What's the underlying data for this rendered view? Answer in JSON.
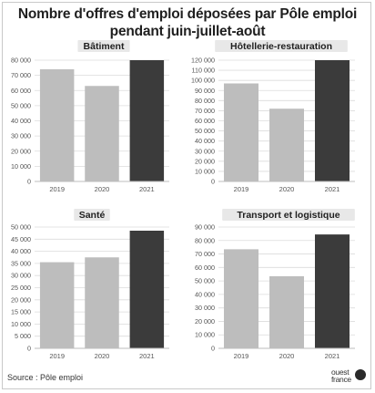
{
  "title": "Nombre d'offres d'emploi déposées par Pôle emploi pendant juin-juillet-août",
  "source": "Source : Pôle emploi",
  "logo": "ouest france",
  "colors": {
    "past": "#bdbdbd",
    "current": "#3b3b3b"
  },
  "chart_data": [
    {
      "type": "bar",
      "title": "Bâtiment",
      "categories": [
        "2019",
        "2020",
        "2021"
      ],
      "values": [
        74000,
        63000,
        80000
      ],
      "ylim": [
        0,
        80000
      ],
      "yticks": [
        0,
        10000,
        20000,
        30000,
        40000,
        50000,
        60000,
        70000,
        80000
      ],
      "ytick_labels": [
        "0",
        "10 000",
        "20 000",
        "30 000",
        "40 000",
        "50 000",
        "60 000",
        "70 000",
        "80 000"
      ],
      "grid": true
    },
    {
      "type": "bar",
      "title": "Hôtellerie-restauration",
      "categories": [
        "2019",
        "2020",
        "2021"
      ],
      "values": [
        97000,
        72000,
        120000
      ],
      "ylim": [
        0,
        120000
      ],
      "yticks": [
        0,
        10000,
        20000,
        30000,
        40000,
        50000,
        60000,
        70000,
        80000,
        90000,
        100000,
        110000,
        120000
      ],
      "ytick_labels": [
        "0",
        "10 000",
        "20 000",
        "30 000",
        "40 000",
        "50 000",
        "60 000",
        "70 000",
        "80 000",
        "90 000",
        "100 000",
        "110 000",
        "120 000"
      ],
      "grid": true
    },
    {
      "type": "bar",
      "title": "Santé",
      "categories": [
        "2019",
        "2020",
        "2021"
      ],
      "values": [
        35500,
        37500,
        48500
      ],
      "ylim": [
        0,
        50000
      ],
      "yticks": [
        0,
        5000,
        10000,
        15000,
        20000,
        25000,
        30000,
        35000,
        40000,
        45000,
        50000
      ],
      "ytick_labels": [
        "0",
        "5 000",
        "10 000",
        "15 000",
        "20 000",
        "25 000",
        "30 000",
        "35 000",
        "40 000",
        "45 000",
        "50 000"
      ],
      "grid": true
    },
    {
      "type": "bar",
      "title": "Transport et logistique",
      "categories": [
        "2019",
        "2020",
        "2021"
      ],
      "values": [
        73500,
        53500,
        84500
      ],
      "ylim": [
        0,
        90000
      ],
      "yticks": [
        0,
        10000,
        20000,
        30000,
        40000,
        50000,
        60000,
        70000,
        80000,
        90000
      ],
      "ytick_labels": [
        "0",
        "10 000",
        "20 000",
        "30 000",
        "40 000",
        "50 000",
        "60 000",
        "70 000",
        "80 000",
        "90 000"
      ],
      "grid": true
    }
  ]
}
